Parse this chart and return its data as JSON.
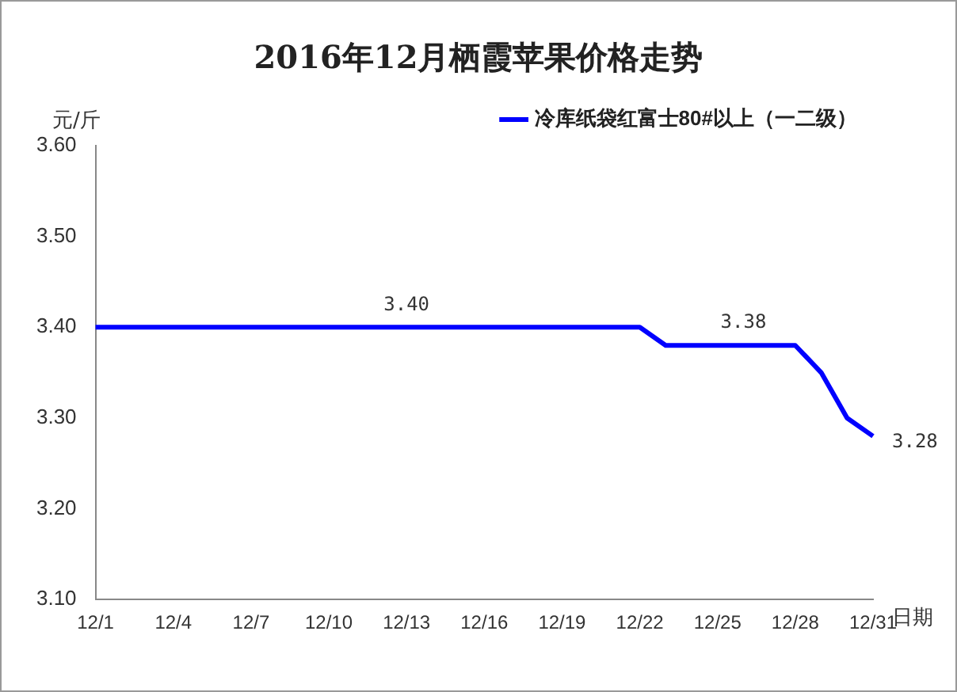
{
  "chart_data": {
    "type": "line",
    "title": "2016年12月栖霞苹果价格走势",
    "ylabel": "元/斤",
    "xlabel": "日期",
    "categories": [
      "12/1",
      null,
      null,
      "12/4",
      null,
      null,
      "12/7",
      null,
      null,
      "12/10",
      null,
      null,
      "12/13",
      null,
      null,
      "12/16",
      null,
      null,
      "12/19",
      null,
      null,
      "12/22",
      null,
      null,
      "12/25",
      null,
      null,
      "12/28",
      null,
      null,
      "12/31"
    ],
    "series": [
      {
        "name": "冷库纸袋红富士80#以上（一二级）",
        "color": "#0000ff",
        "values": [
          3.4,
          3.4,
          3.4,
          3.4,
          3.4,
          3.4,
          3.4,
          3.4,
          3.4,
          3.4,
          3.4,
          3.4,
          3.4,
          3.4,
          3.4,
          3.4,
          3.4,
          3.4,
          3.4,
          3.4,
          3.4,
          3.4,
          3.38,
          3.38,
          3.38,
          3.38,
          3.38,
          3.38,
          3.35,
          3.3,
          3.28
        ],
        "value_labels": [
          null,
          null,
          null,
          null,
          null,
          null,
          null,
          null,
          null,
          null,
          null,
          null,
          "3.40",
          null,
          null,
          null,
          null,
          null,
          null,
          null,
          null,
          null,
          null,
          null,
          null,
          "3.38",
          null,
          null,
          null,
          null,
          "3.28"
        ]
      }
    ],
    "ylim": [
      3.1,
      3.6
    ],
    "yticks": [
      {
        "value": 3.1,
        "label": "3.10"
      },
      {
        "value": 3.2,
        "label": "3.20"
      },
      {
        "value": 3.3,
        "label": "3.30"
      },
      {
        "value": 3.4,
        "label": "3.40"
      },
      {
        "value": 3.5,
        "label": "3.50"
      },
      {
        "value": 3.6,
        "label": "3.60"
      }
    ],
    "grid": false,
    "legend": "top right",
    "marker": "none",
    "line_style": "solid"
  }
}
